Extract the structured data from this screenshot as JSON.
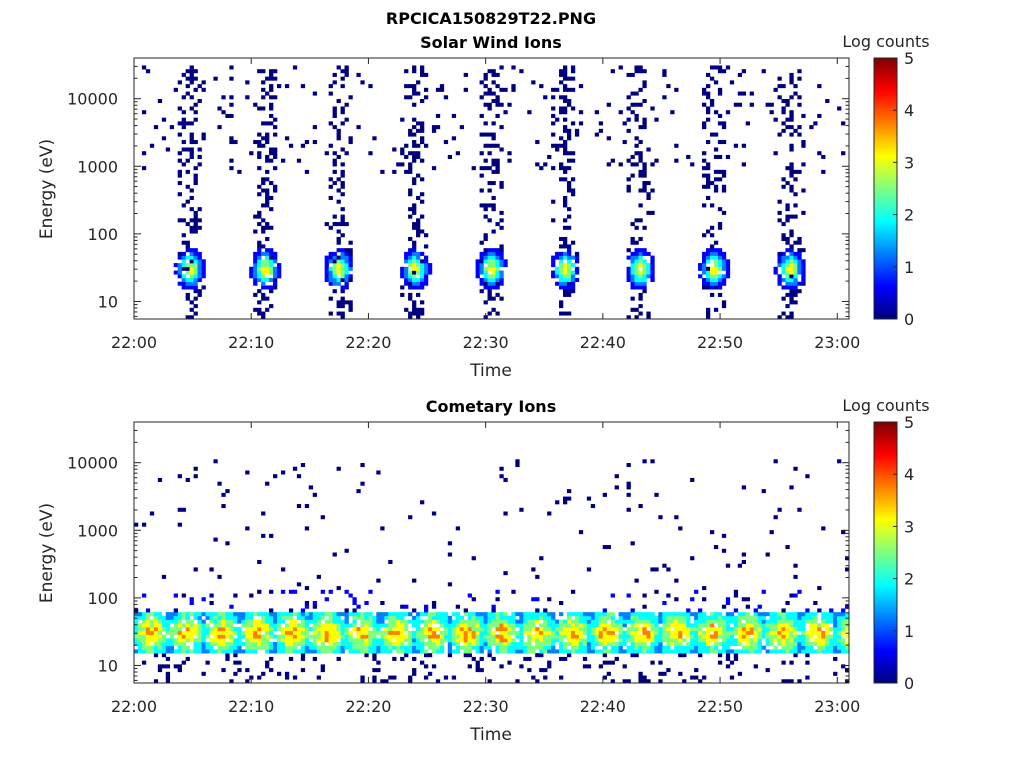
{
  "figure": {
    "title": "RPCICA150829T22.PNG"
  },
  "colormap": [
    "#00007f",
    "#0000ff",
    "#007fff",
    "#00ffff",
    "#7fff7f",
    "#ffff00",
    "#ff7f00",
    "#ff0000",
    "#7f0000"
  ],
  "chart_data": [
    {
      "type": "heatmap",
      "title": "Solar Wind Ions",
      "xlabel": "Time",
      "ylabel": "Energy (eV)",
      "x_ticks": [
        "22:00",
        "22:10",
        "22:20",
        "22:30",
        "22:40",
        "22:50",
        "23:00"
      ],
      "x_range_minutes": [
        0,
        61
      ],
      "y_scale": "log",
      "y_range": [
        5.5,
        40000
      ],
      "y_ticks": [
        10,
        100,
        1000,
        10000
      ],
      "y_tick_labels": [
        "10",
        "100",
        "1000",
        "10000"
      ],
      "colorbar": {
        "label": "Log counts",
        "range": [
          0,
          5
        ],
        "ticks": [
          "0",
          "1",
          "2",
          "3",
          "4",
          "5"
        ]
      },
      "pattern": "bursts",
      "burst_centers_minutes": [
        4.8,
        11.2,
        17.5,
        24.0,
        30.5,
        36.8,
        43.2,
        49.5,
        56.0
      ],
      "peak_energy_ev": 30,
      "peak_log_counts": 3.1,
      "max_scattered_energy_ev": 30000
    },
    {
      "type": "heatmap",
      "title": "Cometary Ions",
      "xlabel": "Time",
      "ylabel": "Energy (eV)",
      "x_ticks": [
        "22:00",
        "22:10",
        "22:20",
        "22:30",
        "22:40",
        "22:50",
        "23:00"
      ],
      "x_range_minutes": [
        0,
        61
      ],
      "y_scale": "log",
      "y_range": [
        5.5,
        40000
      ],
      "y_ticks": [
        10,
        100,
        1000,
        10000
      ],
      "y_tick_labels": [
        "10",
        "100",
        "1000",
        "10000"
      ],
      "colorbar": {
        "label": "Log counts",
        "range": [
          0,
          5
        ],
        "ticks": [
          "0",
          "1",
          "2",
          "3",
          "4",
          "5"
        ]
      },
      "pattern": "continuous-band",
      "band_energy_range_ev": [
        15,
        60
      ],
      "peak_energy_ev": 30,
      "peak_log_counts": 4.0,
      "max_scattered_energy_ev": 11000
    }
  ]
}
